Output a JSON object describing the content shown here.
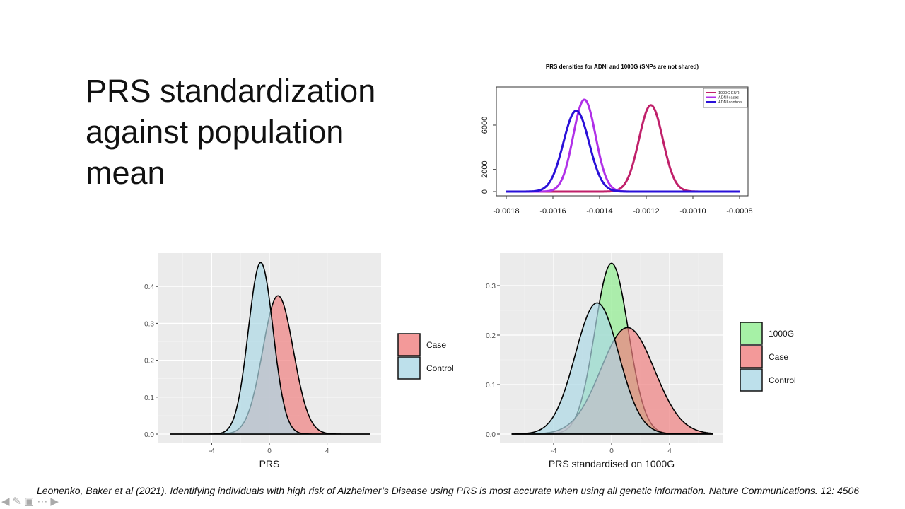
{
  "slide": {
    "title": "PRS standardization against population mean",
    "citation": "Leonenko, Baker et al (2021). Identifying individuals with high risk of Alzheimer’s Disease using PRS is most accurate when using all genetic information. Nature Communications. 12: 4506"
  },
  "nav": {
    "prev": "prev-arrow-icon",
    "pen": "pen-icon",
    "slides": "slides-icon",
    "more": "more-icon",
    "next": "next-arrow-icon"
  },
  "chart_data": [
    {
      "type": "line",
      "title": "PRS densities for ADNI and 1000G (SNPs are not shared)",
      "xlim": [
        -0.0018,
        -0.0008
      ],
      "ylim": [
        0,
        8800
      ],
      "x_ticks": [
        "-0.0018",
        "-0.0016",
        "-0.0014",
        "-0.0012",
        "-0.0010",
        "-0.0008"
      ],
      "y_ticks": [
        "0",
        "2000",
        "6000"
      ],
      "grid": false,
      "legend": "top-right",
      "series": [
        {
          "name": "1000G EUR",
          "color": "#C0206A",
          "mean": -0.00118,
          "sd": 5.1e-05,
          "peak": 7800
        },
        {
          "name": "ADNI cases",
          "color": "#B030E8",
          "mean": -0.001465,
          "sd": 4.8e-05,
          "peak": 8300
        },
        {
          "name": "ADNI controls",
          "color": "#2A10D8",
          "mean": -0.0015,
          "sd": 5.5e-05,
          "peak": 7300
        }
      ]
    },
    {
      "type": "area",
      "xlabel": "PRS",
      "xlim": [
        -7.5,
        7.9
      ],
      "ylim": [
        -0.023,
        0.49
      ],
      "x_ticks": [
        "-4",
        "0",
        "4"
      ],
      "y_ticks": [
        "0.0",
        "0.1",
        "0.2",
        "0.3",
        "0.4"
      ],
      "grid": true,
      "legend": "right",
      "series": [
        {
          "name": "Case",
          "color": "#F08080",
          "mean": 0.6,
          "sd": 1.064,
          "peak": 0.375
        },
        {
          "name": "Control",
          "color": "#ADD8E6",
          "mean": -0.6,
          "sd": 0.858,
          "peak": 0.465
        }
      ]
    },
    {
      "type": "area",
      "xlabel": "PRS standardised on 1000G",
      "xlim": [
        -7.6,
        7.8
      ],
      "ylim": [
        -0.017,
        0.366
      ],
      "x_ticks": [
        "-4",
        "0",
        "4"
      ],
      "y_ticks": [
        "0.0",
        "0.1",
        "0.2",
        "0.3"
      ],
      "grid": true,
      "legend": "right",
      "series": [
        {
          "name": "1000G",
          "color": "#90EE90",
          "mean": 0.0,
          "sd": 1.156,
          "peak": 0.345
        },
        {
          "name": "Case",
          "color": "#F08080",
          "mean": 1.1,
          "sd": 1.855,
          "peak": 0.215
        },
        {
          "name": "Control",
          "color": "#ADD8E6",
          "mean": -1.0,
          "sd": 1.505,
          "peak": 0.265
        }
      ]
    }
  ]
}
